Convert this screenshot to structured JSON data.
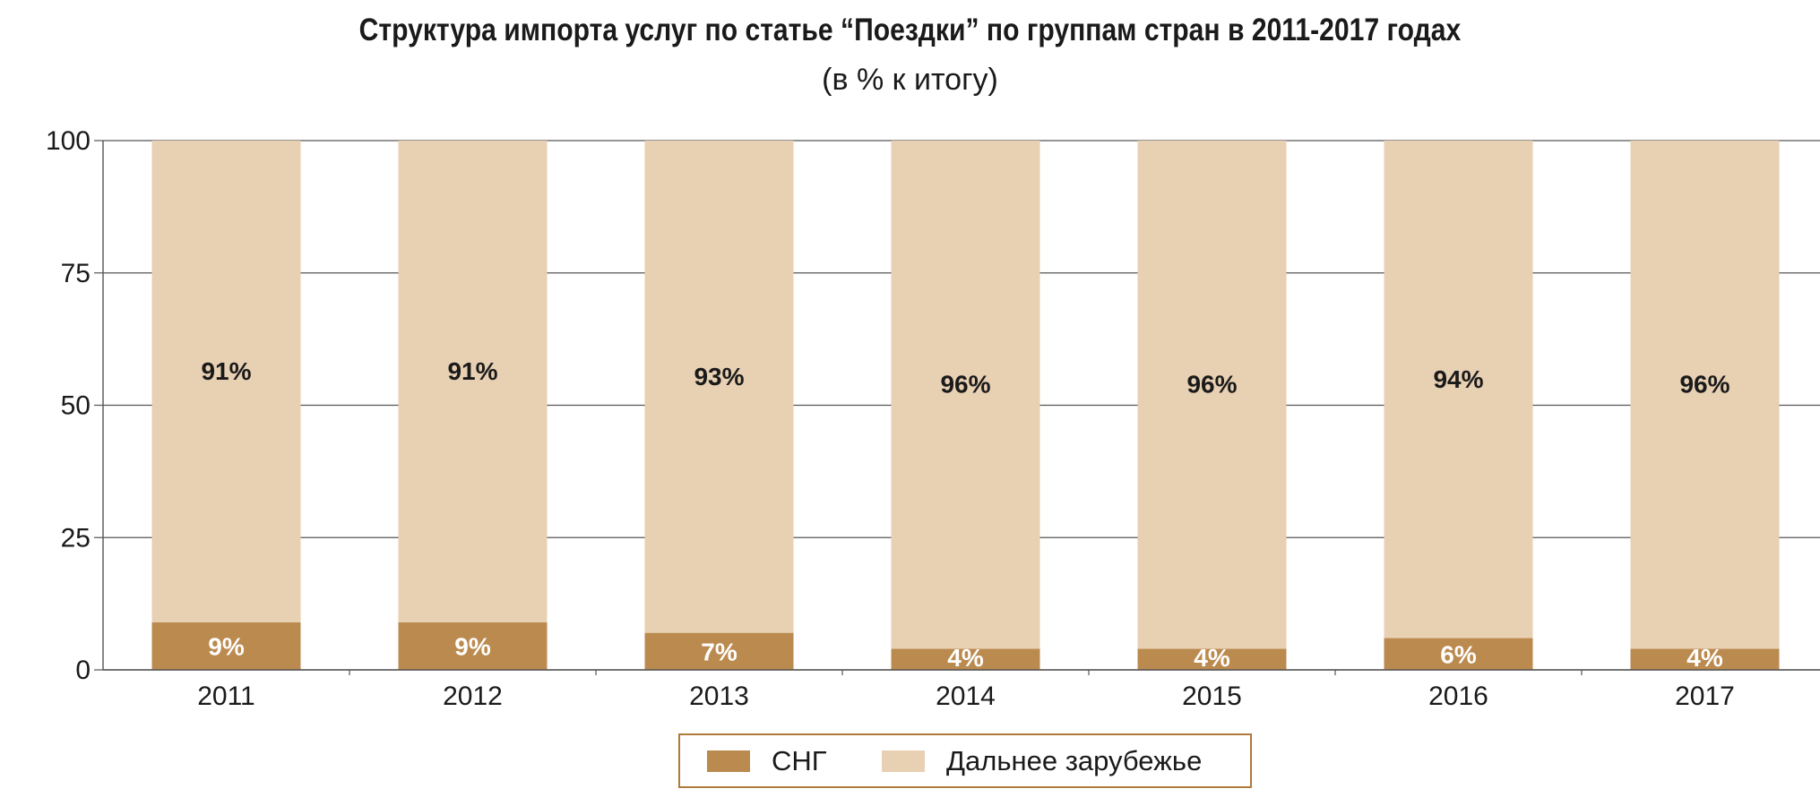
{
  "chart_data": {
    "type": "bar",
    "stacked": true,
    "title": "Структура импорта услуг по статье “Поездки” по группам стран в 2011-2017 годах",
    "subtitle": "(в % к итогу)",
    "categories": [
      "2011",
      "2012",
      "2013",
      "2014",
      "2015",
      "2016",
      "2017"
    ],
    "ylim": [
      0,
      100
    ],
    "yticks": [
      0,
      25,
      50,
      75,
      100
    ],
    "grid": true,
    "legend_position": "bottom-center",
    "series": [
      {
        "name": "СНГ",
        "color": "#bb8a4f",
        "label_color": "#ffffff",
        "values": [
          9,
          9,
          7,
          4,
          4,
          6,
          4
        ],
        "labels": [
          "9%",
          "9%",
          "7%",
          "4%",
          "4%",
          "6%",
          "4%"
        ]
      },
      {
        "name": "Дальнее зарубежье",
        "color": "#e8d0b3",
        "label_color": "#1a1a1a",
        "values": [
          91,
          91,
          93,
          96,
          96,
          94,
          96
        ],
        "labels": [
          "91%",
          "91%",
          "93%",
          "96%",
          "96%",
          "94%",
          "96%"
        ]
      }
    ]
  }
}
